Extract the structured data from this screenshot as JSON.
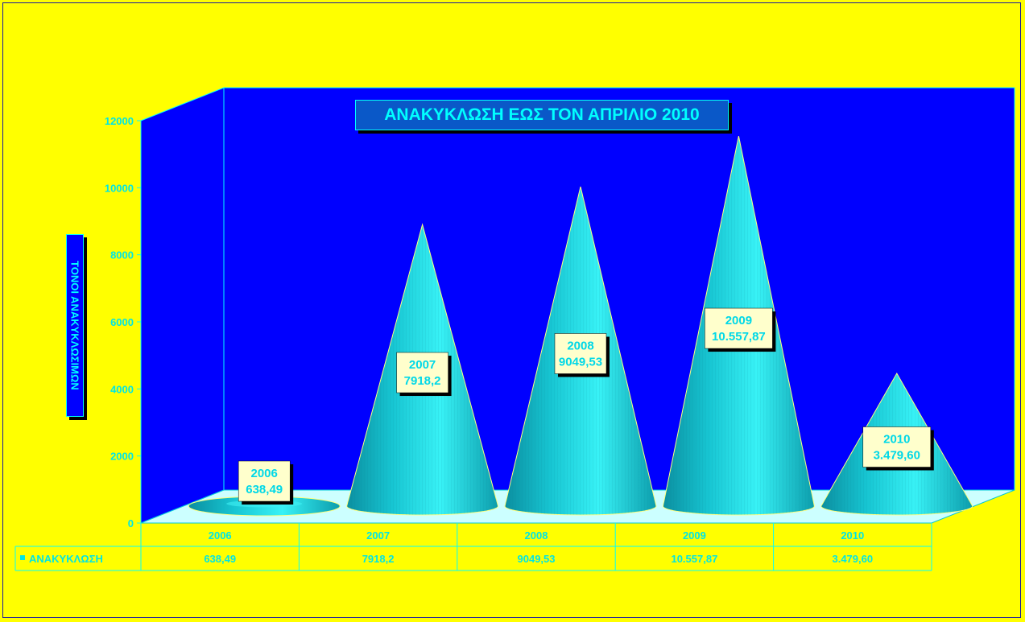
{
  "chart_data": {
    "type": "bar",
    "shape": "3d-cone",
    "title": "ΑΝΑΚΥΚΛΩΣΗ ΕΩΣ ΤΟΝ ΑΠΡΙΛΙΟ 2010",
    "ylabel": "ΤΟΝΟΙ ΑΝΑΚΥΚΛΩΣΙΜΩΝ",
    "xlabel": "",
    "categories": [
      "2006",
      "2007",
      "2008",
      "2009",
      "2010"
    ],
    "series": [
      {
        "name": "ΑΝΑΚΥΚΛΩΣΗ",
        "values": [
          638.49,
          7918.2,
          9049.53,
          10557.87,
          3479.6
        ],
        "display_values": [
          "638,49",
          "7918,2",
          "9049,53",
          "10.557,87",
          "3.479,60"
        ]
      }
    ],
    "ylim": [
      0,
      12000
    ],
    "yticks": [
      "0",
      "2000",
      "4000",
      "6000",
      "8000",
      "10000",
      "12000"
    ],
    "grid": false,
    "legend": "data-table-below",
    "data_table": true,
    "colors": {
      "background": "#ffff00",
      "plot_back_wall": "#0000ff",
      "floor": "#ccffff",
      "cone": "#00d8e0",
      "text": "#00e5e5",
      "label_box": "#ffffcc"
    }
  }
}
